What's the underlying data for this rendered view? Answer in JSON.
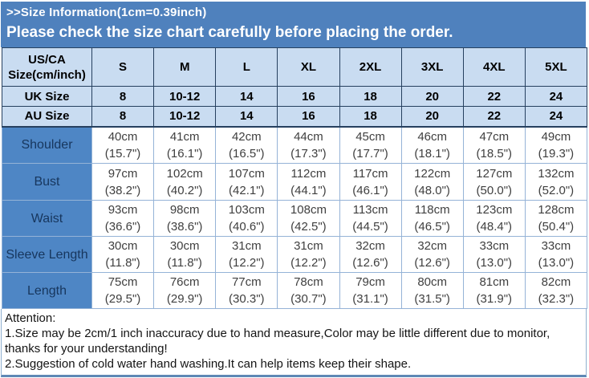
{
  "banner": {
    "title": ">>Size Information(1cm=0.39inch)",
    "subtitle": "Please check the size chart carefully before placing the order."
  },
  "table": {
    "corner_line1": "US/CA",
    "corner_line2": "Size(cm/inch)",
    "size_headers": [
      "S",
      "M",
      "L",
      "XL",
      "2XL",
      "3XL",
      "4XL",
      "5XL"
    ],
    "size_rows": [
      {
        "label": "UK Size",
        "values": [
          "8",
          "10-12",
          "14",
          "16",
          "18",
          "20",
          "22",
          "24"
        ]
      },
      {
        "label": "AU Size",
        "values": [
          "8",
          "10-12",
          "14",
          "16",
          "18",
          "20",
          "22",
          "24"
        ]
      }
    ],
    "measure_rows": [
      {
        "label": "Shoulder",
        "values": [
          {
            "cm": "40cm",
            "in": "(15.7\")"
          },
          {
            "cm": "41cm",
            "in": "(16.1\")"
          },
          {
            "cm": "42cm",
            "in": "(16.5\")"
          },
          {
            "cm": "44cm",
            "in": "(17.3\")"
          },
          {
            "cm": "45cm",
            "in": "(17.7\")"
          },
          {
            "cm": "46cm",
            "in": "(18.1\")"
          },
          {
            "cm": "47cm",
            "in": "(18.5\")"
          },
          {
            "cm": "49cm",
            "in": "(19.3\")"
          }
        ]
      },
      {
        "label": "Bust",
        "values": [
          {
            "cm": "97cm",
            "in": "(38.2\")"
          },
          {
            "cm": "102cm",
            "in": "(40.2\")"
          },
          {
            "cm": "107cm",
            "in": "(42.1\")"
          },
          {
            "cm": "112cm",
            "in": "(44.1\")"
          },
          {
            "cm": "117cm",
            "in": "(46.1\")"
          },
          {
            "cm": "122cm",
            "in": "(48.0\")"
          },
          {
            "cm": "127cm",
            "in": "(50.0\")"
          },
          {
            "cm": "132cm",
            "in": "(52.0\")"
          }
        ]
      },
      {
        "label": "Waist",
        "values": [
          {
            "cm": "93cm",
            "in": "(36.6\")"
          },
          {
            "cm": "98cm",
            "in": "(38.6\")"
          },
          {
            "cm": "103cm",
            "in": "(40.6\")"
          },
          {
            "cm": "108cm",
            "in": "(42.5\")"
          },
          {
            "cm": "113cm",
            "in": "(44.5\")"
          },
          {
            "cm": "118cm",
            "in": "(46.5\")"
          },
          {
            "cm": "123cm",
            "in": "(48.4\")"
          },
          {
            "cm": "128cm",
            "in": "(50.4\")"
          }
        ]
      },
      {
        "label": "Sleeve Length",
        "values": [
          {
            "cm": "30cm",
            "in": "(11.8\")"
          },
          {
            "cm": "30cm",
            "in": "(11.8\")"
          },
          {
            "cm": "31cm",
            "in": "(12.2\")"
          },
          {
            "cm": "31cm",
            "in": "(12.2\")"
          },
          {
            "cm": "32cm",
            "in": "(12.6\")"
          },
          {
            "cm": "32cm",
            "in": "(12.6\")"
          },
          {
            "cm": "33cm",
            "in": "(13.0\")"
          },
          {
            "cm": "33cm",
            "in": "(13.0\")"
          }
        ]
      },
      {
        "label": "Length",
        "values": [
          {
            "cm": "75cm",
            "in": "(29.5\")"
          },
          {
            "cm": "76cm",
            "in": "(29.9\")"
          },
          {
            "cm": "77cm",
            "in": "(30.3\")"
          },
          {
            "cm": "78cm",
            "in": "(30.7\")"
          },
          {
            "cm": "79cm",
            "in": "(31.1\")"
          },
          {
            "cm": "80cm",
            "in": "(31.5\")"
          },
          {
            "cm": "81cm",
            "in": "(31.9\")"
          },
          {
            "cm": "82cm",
            "in": "(32.3\")"
          }
        ]
      }
    ]
  },
  "attention": {
    "lines": [
      "Attention:",
      "1.Size may be 2cm/1 inch inaccuracy due to hand measure,Color may be little different due to monitor,",
      "thanks for your understanding!",
      "2.Suggestion of cold water hand washing.It can help items keep their shape."
    ]
  },
  "colors": {
    "banner_bg": "#4f81bd",
    "header_bg": "#c9dcf1",
    "label_bg": "#4e86c5",
    "header_border": "#26405f",
    "data_border": "#95b3d7",
    "label_text": "#17365d",
    "data_text": "#3f3f3f"
  },
  "chart_data": {
    "type": "table",
    "title": ">>Size Information(1cm=0.39inch)",
    "subtitle": "Please check the size chart carefully before placing the order.",
    "columns": [
      "US/CA Size(cm/inch)",
      "S",
      "M",
      "L",
      "XL",
      "2XL",
      "3XL",
      "4XL",
      "5XL"
    ],
    "rows": [
      [
        "UK Size",
        "8",
        "10-12",
        "14",
        "16",
        "18",
        "20",
        "22",
        "24"
      ],
      [
        "AU Size",
        "8",
        "10-12",
        "14",
        "16",
        "18",
        "20",
        "22",
        "24"
      ],
      [
        "Shoulder",
        "40cm (15.7\")",
        "41cm (16.1\")",
        "42cm (16.5\")",
        "44cm (17.3\")",
        "45cm (17.7\")",
        "46cm (18.1\")",
        "47cm (18.5\")",
        "49cm (19.3\")"
      ],
      [
        "Bust",
        "97cm (38.2\")",
        "102cm (40.2\")",
        "107cm (42.1\")",
        "112cm (44.1\")",
        "117cm (46.1\")",
        "122cm (48.0\")",
        "127cm (50.0\")",
        "132cm (52.0\")"
      ],
      [
        "Waist",
        "93cm (36.6\")",
        "98cm (38.6\")",
        "103cm (40.6\")",
        "108cm (42.5\")",
        "113cm (44.5\")",
        "118cm (46.5\")",
        "123cm (48.4\")",
        "128cm (50.4\")"
      ],
      [
        "Sleeve Length",
        "30cm (11.8\")",
        "30cm (11.8\")",
        "31cm (12.2\")",
        "31cm (12.2\")",
        "32cm (12.6\")",
        "32cm (12.6\")",
        "33cm (13.0\")",
        "33cm (13.0\")"
      ],
      [
        "Length",
        "75cm (29.5\")",
        "76cm (29.9\")",
        "77cm (30.3\")",
        "78cm (30.7\")",
        "79cm (31.1\")",
        "80cm (31.5\")",
        "81cm (31.9\")",
        "82cm (32.3\")"
      ]
    ],
    "notes": [
      "Attention:",
      "1.Size may be 2cm/1 inch inaccuracy due to hand measure,Color may be little different due to monitor, thanks for your understanding!",
      "2.Suggestion of cold water hand washing.It can help items keep their shape."
    ]
  }
}
